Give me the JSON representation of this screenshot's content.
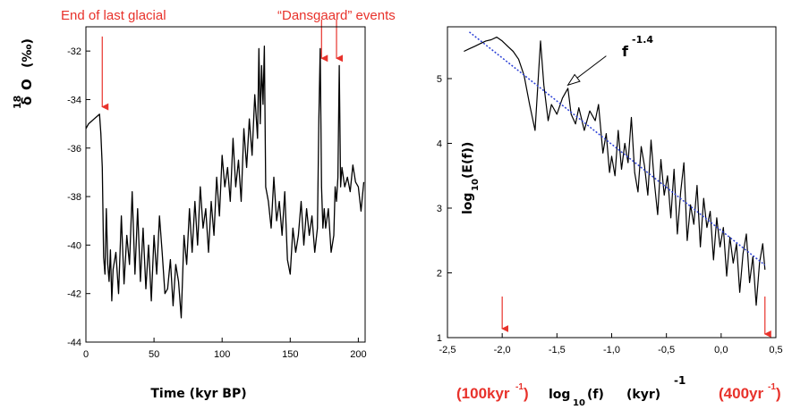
{
  "chart_data": [
    {
      "type": "line",
      "xlabel": "Time (kyr BP)",
      "ylabel": {
        "symbol": "δ",
        "iso": "18",
        "element": "O",
        "unit": "(‰)"
      },
      "xlim": [
        0,
        205
      ],
      "ylim": [
        -44,
        -31
      ],
      "xticks": [
        "0",
        "50",
        "100",
        "150",
        "200"
      ],
      "yticks": [
        "-44",
        "-42",
        "-40",
        "-38",
        "-36",
        "-34",
        "-32"
      ],
      "series": [
        {
          "color": "#000000",
          "x": [
            0,
            2,
            4,
            6,
            8,
            10,
            11,
            12,
            13,
            14,
            15,
            16,
            17,
            18,
            19,
            20,
            22,
            24,
            26,
            28,
            30,
            32,
            34,
            36,
            38,
            40,
            42,
            44,
            46,
            48,
            50,
            52,
            54,
            56,
            58,
            60,
            62,
            64,
            66,
            68,
            70,
            72,
            74,
            76,
            78,
            80,
            82,
            84,
            86,
            88,
            90,
            92,
            94,
            96,
            98,
            100,
            102,
            104,
            106,
            108,
            110,
            112,
            114,
            116,
            118,
            120,
            122,
            124,
            126,
            127,
            128,
            129,
            130,
            131,
            132,
            134,
            136,
            138,
            140,
            142,
            144,
            146,
            148,
            150,
            152,
            154,
            156,
            158,
            160,
            162,
            164,
            166,
            168,
            170,
            171,
            172,
            173,
            174,
            175,
            176,
            178,
            180,
            182,
            183,
            184,
            185,
            186,
            187,
            188,
            190,
            192,
            194,
            196,
            198,
            200,
            202,
            204
          ],
          "y": [
            -35.2,
            -35,
            -34.9,
            -34.8,
            -34.7,
            -34.6,
            -35.4,
            -36.8,
            -40.5,
            -41.2,
            -38.5,
            -40.8,
            -41.5,
            -40.2,
            -42.3,
            -41,
            -40.3,
            -42,
            -38.8,
            -41.6,
            -39.6,
            -40.8,
            -37.8,
            -41.2,
            -38.5,
            -41.5,
            -39.3,
            -41.8,
            -40,
            -42.3,
            -39.6,
            -41.2,
            -38.8,
            -40.3,
            -42,
            -41.8,
            -40.6,
            -42.5,
            -40.8,
            -41.5,
            -43,
            -39.6,
            -40.8,
            -38.5,
            -40.3,
            -38.2,
            -40,
            -37.6,
            -39.3,
            -38.5,
            -40.3,
            -38.2,
            -39.6,
            -37.2,
            -38.8,
            -36.3,
            -37.6,
            -36.8,
            -38.2,
            -35.6,
            -37.6,
            -36.5,
            -38.2,
            -35.2,
            -36.8,
            -34.8,
            -36.3,
            -33.8,
            -35.6,
            -31.9,
            -35,
            -32.6,
            -34.2,
            -31.8,
            -37.6,
            -38.2,
            -39.3,
            -37.2,
            -39,
            -38.2,
            -39.6,
            -37.8,
            -40.6,
            -41.2,
            -39.3,
            -40.3,
            -39.6,
            -38.2,
            -40,
            -38.5,
            -39.6,
            -38.8,
            -40.3,
            -39.3,
            -34.8,
            -31.9,
            -37.6,
            -39.3,
            -38.5,
            -39.3,
            -38.5,
            -40.3,
            -39.6,
            -37.6,
            -38.2,
            -37.2,
            -32.6,
            -37.6,
            -36.8,
            -37.6,
            -37.2,
            -37.8,
            -36.7,
            -37.4,
            -37.6,
            -38.6,
            -37.4
          ]
        }
      ],
      "annotations": [
        {
          "text": "End of last glacial",
          "color": "#e8322b",
          "arrow_x": 12,
          "arrow_from_y": -31.4,
          "arrow_to_y": -34.3
        },
        {
          "text": "“Dansgaard” events",
          "color": "#e8322b",
          "arrow_xs": [
            173,
            184
          ],
          "arrow_from_y": -30.7,
          "arrow_to_y": -32.3
        }
      ]
    },
    {
      "type": "line",
      "xlabel": {
        "main": "log",
        "sub": "10",
        "arg": "(f)",
        "unit": "(kyr)",
        "power": "-1"
      },
      "ylabel": {
        "main": "log",
        "sub": "10",
        "arg": "(E(f))"
      },
      "xlim": [
        -2.5,
        0.5
      ],
      "ylim": [
        1,
        5.8
      ],
      "xticks": [
        "-2,5",
        "-2,0",
        "-1,5",
        "-1,0",
        "-0,5",
        "0,0",
        "0,5"
      ],
      "yticks": [
        "1",
        "2",
        "3",
        "4",
        "5"
      ],
      "series": [
        {
          "color": "#000000",
          "x": [
            -2.35,
            -2.3,
            -2.25,
            -2.2,
            -2.15,
            -2.1,
            -2.05,
            -2,
            -1.95,
            -1.9,
            -1.85,
            -1.8,
            -1.75,
            -1.7,
            -1.65,
            -1.62,
            -1.58,
            -1.55,
            -1.5,
            -1.45,
            -1.4,
            -1.37,
            -1.33,
            -1.3,
            -1.25,
            -1.2,
            -1.15,
            -1.12,
            -1.08,
            -1.05,
            -1.02,
            -1,
            -0.97,
            -0.94,
            -0.91,
            -0.88,
            -0.85,
            -0.82,
            -0.79,
            -0.76,
            -0.73,
            -0.7,
            -0.67,
            -0.64,
            -0.61,
            -0.58,
            -0.55,
            -0.52,
            -0.49,
            -0.46,
            -0.43,
            -0.4,
            -0.37,
            -0.34,
            -0.31,
            -0.28,
            -0.25,
            -0.22,
            -0.19,
            -0.16,
            -0.13,
            -0.1,
            -0.07,
            -0.04,
            -0.01,
            0.02,
            0.05,
            0.08,
            0.11,
            0.14,
            0.17,
            0.2,
            0.23,
            0.26,
            0.29,
            0.32,
            0.35,
            0.38,
            0.4
          ],
          "y": [
            5.42,
            5.46,
            5.5,
            5.54,
            5.58,
            5.6,
            5.64,
            5.58,
            5.5,
            5.42,
            5.3,
            5.05,
            4.6,
            4.2,
            5.58,
            4.9,
            4.35,
            4.6,
            4.45,
            4.7,
            4.85,
            4.45,
            4.3,
            4.55,
            4.2,
            4.5,
            4.35,
            4.6,
            3.85,
            4.15,
            3.55,
            3.8,
            3.5,
            4.2,
            3.6,
            4.0,
            3.7,
            4.4,
            3.55,
            3.25,
            3.95,
            3.65,
            3.2,
            4.05,
            3.4,
            2.9,
            3.75,
            3.2,
            3.5,
            2.85,
            3.6,
            2.6,
            3.25,
            3.7,
            2.5,
            3.05,
            2.75,
            3.35,
            2.4,
            3.15,
            2.7,
            2.95,
            2.2,
            2.85,
            2.4,
            2.7,
            1.95,
            2.55,
            2.15,
            2.45,
            1.7,
            2.3,
            2.6,
            1.85,
            2.25,
            1.5,
            2.15,
            2.45,
            2.05
          ]
        },
        {
          "color": "#2a3fd6",
          "x": [
            -2.3,
            0.4
          ],
          "y": [
            5.72,
            2.12
          ]
        }
      ],
      "annotations": [
        {
          "text": "f",
          "sup": "-1.4",
          "arrow_from": [
            -1.05,
            5.35
          ],
          "arrow_to": [
            -1.4,
            4.9
          ]
        },
        {
          "text": "(100kyr",
          "sup": "-1",
          "suffix": ")",
          "color": "#e8322b",
          "arrow_x": -2.0
        },
        {
          "text": "(400yr",
          "sup": "-1",
          "suffix": ")",
          "color": "#e8322b",
          "arrow_x": 0.4
        }
      ]
    }
  ]
}
